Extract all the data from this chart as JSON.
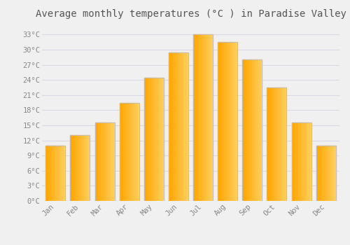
{
  "months": [
    "Jan",
    "Feb",
    "Mar",
    "Apr",
    "May",
    "Jun",
    "Jul",
    "Aug",
    "Sep",
    "Oct",
    "Nov",
    "Dec"
  ],
  "temperatures": [
    11,
    13,
    15.5,
    19.5,
    24.5,
    29.5,
    33,
    31.5,
    28,
    22.5,
    15.5,
    11
  ],
  "bar_color_left": "#FFA500",
  "bar_color_right": "#FFD060",
  "bar_edge_color": "#BBBBCC",
  "title": "Average monthly temperatures (°C ) in Paradise Valley",
  "title_fontsize": 10,
  "ylim": [
    0,
    35
  ],
  "yticks": [
    0,
    3,
    6,
    9,
    12,
    15,
    18,
    21,
    24,
    27,
    30,
    33
  ],
  "ytick_labels": [
    "0°C",
    "3°C",
    "6°C",
    "9°C",
    "12°C",
    "15°C",
    "18°C",
    "21°C",
    "24°C",
    "27°C",
    "30°C",
    "33°C"
  ],
  "background_color": "#f0f0f0",
  "plot_bg_color": "#f0f0f0",
  "grid_color": "#d8d8e8",
  "tick_label_color": "#888888",
  "title_color": "#555555",
  "font_family": "monospace",
  "bar_width": 0.8
}
